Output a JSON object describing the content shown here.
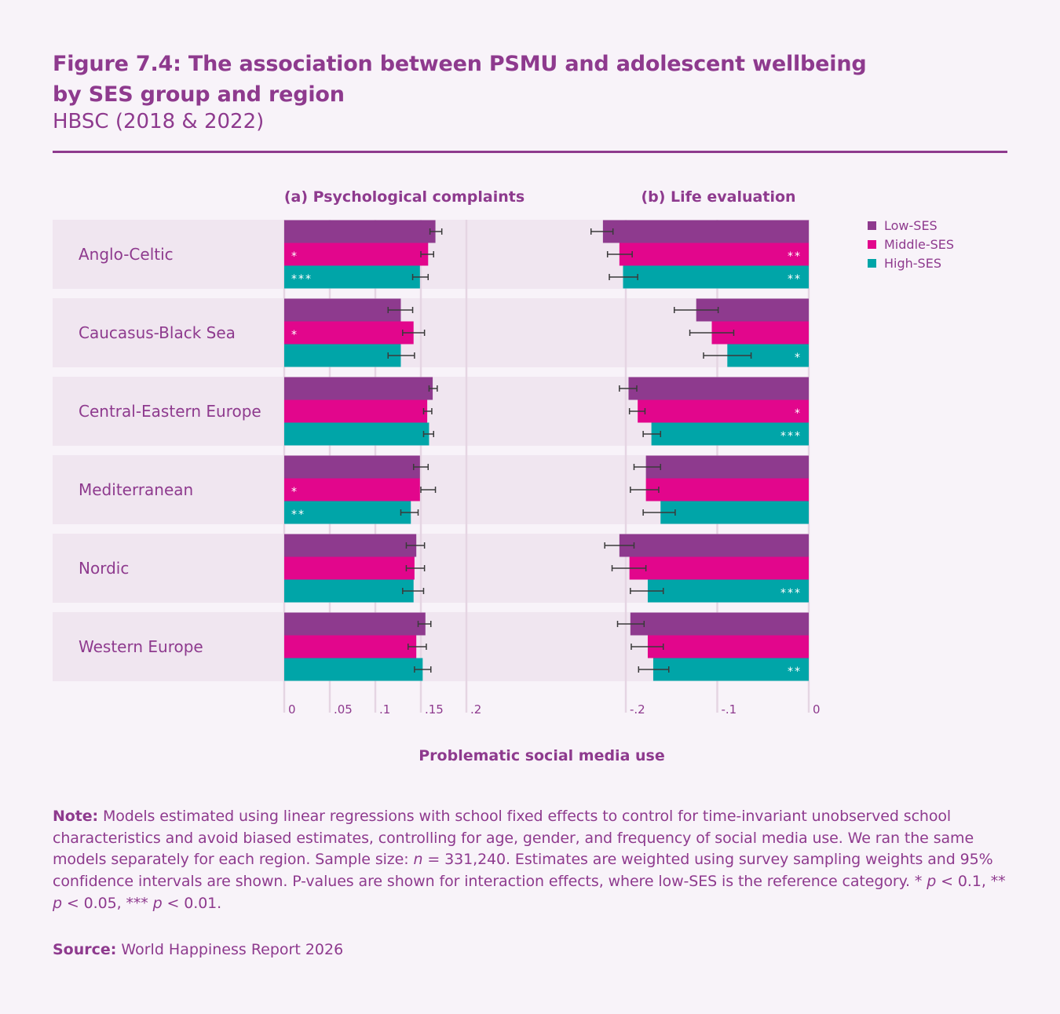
{
  "header": {
    "title_line1": "Figure 7.4: The association between PSMU and adolescent wellbeing",
    "title_line2": "by SES group and region",
    "subtitle": "HBSC (2018 & 2022)"
  },
  "colors": {
    "Low-SES": "#8e3a8e",
    "Middle-SES": "#e2068c",
    "High-SES": "#00a5a8",
    "text": "#8e3a8e",
    "band": "#f0e6f0",
    "grid": "#e5d5e3",
    "errorbar": "#3a3a3a"
  },
  "chart_data": [
    {
      "type": "bar",
      "orientation": "horizontal",
      "title": "(a) Psychological complaints",
      "xlabel": "Problematic social media use",
      "xlim": [
        0,
        0.2
      ],
      "ticks": [
        0,
        0.05,
        0.1,
        0.15,
        0.2
      ],
      "tick_labels": [
        "0",
        ".05",
        ".1",
        ".15",
        ".2"
      ],
      "categories": [
        "Anglo-Celtic",
        "Caucasus-Black Sea",
        "Central-Eastern Europe",
        "Mediterranean",
        "Nordic",
        "Western Europe"
      ],
      "series": [
        {
          "name": "Low-SES",
          "values": [
            0.166,
            0.128,
            0.163,
            0.149,
            0.145,
            0.155
          ],
          "ci": [
            [
              0.16,
              0.173
            ],
            [
              0.114,
              0.141
            ],
            [
              0.159,
              0.168
            ],
            [
              0.142,
              0.158
            ],
            [
              0.134,
              0.154
            ],
            [
              0.147,
              0.161
            ]
          ],
          "sig": [
            "",
            "",
            "",
            "",
            "",
            ""
          ]
        },
        {
          "name": "Middle-SES",
          "values": [
            0.158,
            0.142,
            0.157,
            0.149,
            0.143,
            0.145
          ],
          "ci": [
            [
              0.15,
              0.164
            ],
            [
              0.13,
              0.154
            ],
            [
              0.153,
              0.162
            ],
            [
              0.15,
              0.166
            ],
            [
              0.134,
              0.154
            ],
            [
              0.136,
              0.156
            ]
          ],
          "sig": [
            "*",
            "*",
            "",
            "*",
            "",
            ""
          ]
        },
        {
          "name": "High-SES",
          "values": [
            0.149,
            0.128,
            0.159,
            0.139,
            0.142,
            0.152
          ],
          "ci": [
            [
              0.141,
              0.158
            ],
            [
              0.114,
              0.143
            ],
            [
              0.153,
              0.164
            ],
            [
              0.128,
              0.147
            ],
            [
              0.13,
              0.153
            ],
            [
              0.143,
              0.161
            ]
          ],
          "sig": [
            "***",
            "",
            "",
            "**",
            "",
            ""
          ]
        }
      ]
    },
    {
      "type": "bar",
      "orientation": "horizontal",
      "title": "(b) Life evaluation",
      "xlabel": "Problematic social media use",
      "xlim": [
        -0.2,
        0
      ],
      "ticks": [
        -0.2,
        -0.1,
        0
      ],
      "tick_labels": [
        "-.2",
        "-.1",
        "0"
      ],
      "categories": [
        "Anglo-Celtic",
        "Caucasus-Black Sea",
        "Central-Eastern Europe",
        "Mediterranean",
        "Nordic",
        "Western Europe"
      ],
      "series": [
        {
          "name": "Low-SES",
          "values": [
            -0.225,
            -0.123,
            -0.197,
            -0.178,
            -0.207,
            -0.195
          ],
          "ci": [
            [
              -0.238,
              -0.214
            ],
            [
              -0.147,
              -0.099
            ],
            [
              -0.207,
              -0.188
            ],
            [
              -0.191,
              -0.162
            ],
            [
              -0.223,
              -0.191
            ],
            [
              -0.209,
              -0.18
            ]
          ],
          "sig": [
            "",
            "",
            "",
            "",
            "",
            ""
          ]
        },
        {
          "name": "Middle-SES",
          "values": [
            -0.207,
            -0.106,
            -0.187,
            -0.178,
            -0.196,
            -0.176
          ],
          "ci": [
            [
              -0.22,
              -0.193
            ],
            [
              -0.13,
              -0.082
            ],
            [
              -0.196,
              -0.179
            ],
            [
              -0.195,
              -0.164
            ],
            [
              -0.215,
              -0.178
            ],
            [
              -0.194,
              -0.159
            ]
          ],
          "sig": [
            "**",
            "",
            "*",
            "",
            "",
            ""
          ]
        },
        {
          "name": "High-SES",
          "values": [
            -0.203,
            -0.089,
            -0.172,
            -0.162,
            -0.176,
            -0.17
          ],
          "ci": [
            [
              -0.218,
              -0.187
            ],
            [
              -0.115,
              -0.063
            ],
            [
              -0.181,
              -0.162
            ],
            [
              -0.181,
              -0.146
            ],
            [
              -0.195,
              -0.159
            ],
            [
              -0.186,
              -0.153
            ]
          ],
          "sig": [
            "**",
            "*",
            "***",
            "",
            "***",
            "**"
          ]
        }
      ]
    }
  ],
  "legend": {
    "position": "right",
    "items": [
      "Low-SES",
      "Middle-SES",
      "High-SES"
    ]
  },
  "axis_title": "Problematic social media use",
  "note": {
    "label": "Note:",
    "text_a": " Models estimated using linear regressions with school fixed effects to control for time-invariant unobserved school characteristics and avoid biased estimates, controlling for age, gender, and frequency of social media use. We ran the same models separately for each region. Sample size: ",
    "n_symbol": "n",
    "text_b": " = 331,240. Estimates are weighted using survey sampling weights and 95% confidence intervals are shown. P-values are shown for interaction effects, where low-SES is the reference category. * ",
    "p1": "p",
    "text_c": " < 0.1, ** ",
    "p2": "p",
    "text_d": " < 0.05, *** ",
    "p3": "p",
    "text_e": " < 0.01."
  },
  "source": {
    "label": "Source:",
    "text": " World Happiness Report 2026"
  }
}
